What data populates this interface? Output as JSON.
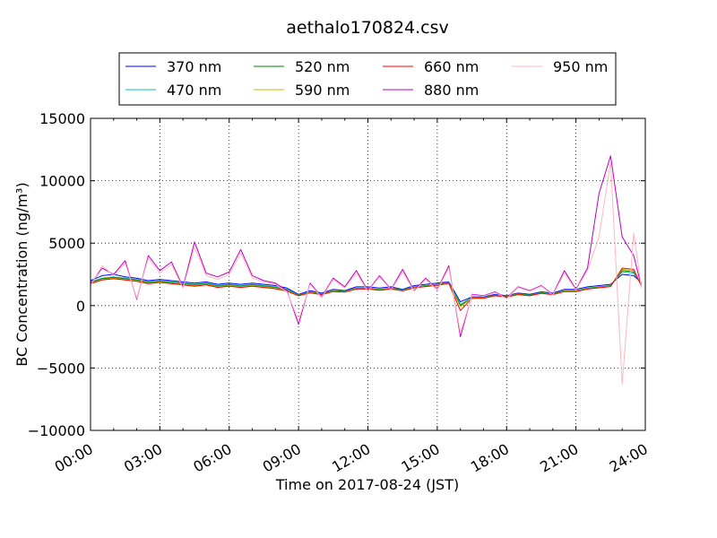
{
  "chart_data": {
    "type": "line",
    "title": "aethalo170824.csv",
    "xlabel": "Time on 2017-08-24 (JST)",
    "ylabel": "BC Concentration (ng/m³)",
    "xlim": [
      "00:00",
      "24:00"
    ],
    "ylim": [
      -10000,
      15000
    ],
    "x_tick_labels": [
      "00:00",
      "03:00",
      "06:00",
      "09:00",
      "12:00",
      "15:00",
      "18:00",
      "21:00",
      "24:00"
    ],
    "y_ticks": [
      -10000,
      -5000,
      0,
      5000,
      10000,
      15000
    ],
    "y_tick_labels": [
      "−10000",
      "−5000",
      "0",
      "5000",
      "10000",
      "15000"
    ],
    "grid": true,
    "legend_location": "top-center",
    "legend_columns": 4,
    "x": [
      "00:00",
      "00:30",
      "01:00",
      "01:30",
      "02:00",
      "02:30",
      "03:00",
      "03:30",
      "04:00",
      "04:30",
      "05:00",
      "05:30",
      "06:00",
      "06:30",
      "07:00",
      "07:30",
      "08:00",
      "08:30",
      "09:00",
      "09:30",
      "10:00",
      "10:30",
      "11:00",
      "11:30",
      "12:00",
      "12:30",
      "13:00",
      "13:30",
      "14:00",
      "14:30",
      "15:00",
      "15:30",
      "16:00",
      "16:30",
      "17:00",
      "17:30",
      "18:00",
      "18:30",
      "19:00",
      "19:30",
      "20:00",
      "20:30",
      "21:00",
      "21:30",
      "22:00",
      "22:30",
      "23:00",
      "23:30",
      "23:50"
    ],
    "series": [
      {
        "name": "370 nm",
        "color": "#0000ff",
        "values": [
          2000,
          2400,
          2500,
          2300,
          2200,
          2000,
          2100,
          2000,
          1900,
          1800,
          1900,
          1700,
          1800,
          1700,
          1800,
          1700,
          1600,
          1400,
          900,
          1200,
          1000,
          1300,
          1200,
          1500,
          1500,
          1400,
          1500,
          1300,
          1600,
          1700,
          1800,
          1900,
          300,
          700,
          700,
          900,
          800,
          1000,
          900,
          1100,
          1000,
          1300,
          1300,
          1500,
          1600,
          1700,
          2500,
          2400,
          1800
        ]
      },
      {
        "name": "470 nm",
        "color": "#00bfbf",
        "values": [
          1900,
          2200,
          2300,
          2200,
          2100,
          1900,
          2000,
          1900,
          1800,
          1700,
          1800,
          1600,
          1700,
          1600,
          1700,
          1600,
          1500,
          1300,
          850,
          1100,
          950,
          1200,
          1150,
          1400,
          1400,
          1300,
          1400,
          1250,
          1500,
          1600,
          1700,
          1850,
          100,
          650,
          650,
          850,
          750,
          950,
          850,
          1050,
          950,
          1200,
          1200,
          1400,
          1500,
          1600,
          2700,
          2600,
          1700
        ]
      },
      {
        "name": "520 nm",
        "color": "#008000",
        "values": [
          1850,
          2150,
          2250,
          2150,
          2050,
          1850,
          1950,
          1850,
          1750,
          1650,
          1750,
          1550,
          1650,
          1550,
          1650,
          1550,
          1450,
          1250,
          820,
          1080,
          920,
          1180,
          1120,
          1380,
          1380,
          1280,
          1380,
          1220,
          1480,
          1580,
          1680,
          1820,
          0,
          620,
          620,
          820,
          720,
          920,
          820,
          1020,
          920,
          1180,
          1180,
          1380,
          1480,
          1580,
          2800,
          2700,
          1650
        ]
      },
      {
        "name": "590 nm",
        "color": "#bfbf00",
        "values": [
          1800,
          2100,
          2200,
          2100,
          2000,
          1800,
          1900,
          1800,
          1700,
          1600,
          1700,
          1500,
          1600,
          1500,
          1600,
          1500,
          1400,
          1200,
          800,
          1050,
          900,
          1150,
          1100,
          1350,
          1350,
          1250,
          1350,
          1200,
          1450,
          1550,
          1650,
          1800,
          -100,
          600,
          600,
          800,
          700,
          900,
          800,
          1000,
          900,
          1150,
          1150,
          1350,
          1450,
          1550,
          2900,
          2800,
          1600
        ]
      },
      {
        "name": "660 nm",
        "color": "#ff0000",
        "values": [
          1750,
          2050,
          2150,
          2050,
          1950,
          1750,
          1850,
          1750,
          1650,
          1550,
          1650,
          1450,
          1550,
          1450,
          1550,
          1450,
          1350,
          1150,
          780,
          1020,
          880,
          1120,
          1080,
          1320,
          1320,
          1220,
          1320,
          1180,
          1420,
          1520,
          1620,
          1780,
          -400,
          580,
          580,
          780,
          680,
          880,
          780,
          980,
          880,
          1120,
          1120,
          1320,
          1420,
          1520,
          3000,
          2900,
          1550
        ]
      },
      {
        "name": "880 nm",
        "color": "#bf00bf",
        "values": [
          1700,
          3000,
          2500,
          3600,
          500,
          4000,
          2800,
          3500,
          1500,
          5100,
          2600,
          2300,
          2700,
          4500,
          2400,
          2000,
          1800,
          1200,
          -1500,
          1800,
          700,
          2200,
          1500,
          2800,
          1200,
          2400,
          1300,
          2900,
          1200,
          2200,
          1300,
          3200,
          -2500,
          900,
          800,
          1100,
          600,
          1500,
          1200,
          1600,
          900,
          2800,
          1300,
          3000,
          9000,
          12000,
          5500,
          4000,
          1500
        ]
      },
      {
        "name": "950 nm",
        "color": "#ffb6c1",
        "values": [
          1600,
          3200,
          2400,
          3400,
          600,
          3800,
          2600,
          3300,
          1400,
          4700,
          2400,
          2100,
          2500,
          4200,
          2200,
          1900,
          1700,
          1100,
          -1200,
          1700,
          650,
          2100,
          1400,
          2600,
          1150,
          2300,
          1250,
          2700,
          1150,
          2100,
          1250,
          3000,
          -2200,
          850,
          750,
          1050,
          550,
          1450,
          1150,
          1550,
          850,
          2600,
          1250,
          2800,
          5500,
          11500,
          -6300,
          5800,
          1400
        ]
      }
    ]
  }
}
